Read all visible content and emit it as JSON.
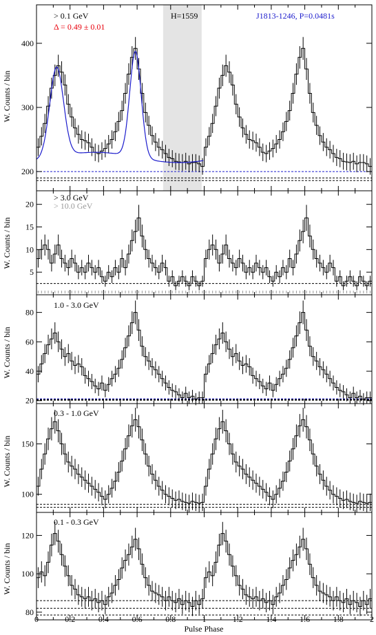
{
  "chart_data": [
    {
      "type": "line",
      "energy_label": "> 0.1 GeV",
      "delta_label": "Δ = 0.49 ± 0.01",
      "h_label": "H=1559",
      "source_label": "J1813-1246, P=0.0481s",
      "ylabel": "W. Counts / bin",
      "xlim": [
        0,
        2
      ],
      "ylim": [
        170,
        460
      ],
      "yticks": [
        200,
        300,
        400
      ],
      "shaded_phase": [
        0.755,
        0.985
      ],
      "baselines": [
        200,
        190,
        186
      ],
      "x": [
        0.0,
        0.02,
        0.04,
        0.06,
        0.08,
        0.1,
        0.12,
        0.14,
        0.16,
        0.18,
        0.2,
        0.22,
        0.24,
        0.26,
        0.28,
        0.3,
        0.32,
        0.34,
        0.36,
        0.38,
        0.4,
        0.42,
        0.44,
        0.46,
        0.48,
        0.5,
        0.52,
        0.54,
        0.56,
        0.58,
        0.6,
        0.62,
        0.64,
        0.66,
        0.68,
        0.7,
        0.72,
        0.74,
        0.76,
        0.78,
        0.8,
        0.82,
        0.84,
        0.86,
        0.88,
        0.9,
        0.92,
        0.94,
        0.96,
        0.98
      ],
      "series": [
        {
          "values": [
            238,
            255,
            275,
            302,
            330,
            350,
            365,
            355,
            335,
            305,
            285,
            268,
            258,
            250,
            248,
            245,
            238,
            230,
            228,
            232,
            236,
            243,
            250,
            262,
            278,
            295,
            322,
            352,
            378,
            392,
            360,
            322,
            292,
            272,
            256,
            246,
            238,
            234,
            228,
            222,
            220,
            216,
            215,
            214,
            216,
            212,
            214,
            214,
            212,
            208
          ]
        }
      ]
    },
    {
      "type": "line",
      "energy_label": "> 3.0 GeV",
      "energy_label2": "> 10.0 GeV",
      "ylabel": "W. Counts / bin",
      "xlim": [
        0,
        2
      ],
      "ylim": [
        0,
        23
      ],
      "yticks": [
        5,
        10,
        15,
        20
      ],
      "baselines": [
        2.5
      ],
      "x": [
        0.0,
        0.02,
        0.04,
        0.06,
        0.08,
        0.1,
        0.12,
        0.14,
        0.16,
        0.18,
        0.2,
        0.22,
        0.24,
        0.26,
        0.28,
        0.3,
        0.32,
        0.34,
        0.36,
        0.38,
        0.4,
        0.42,
        0.44,
        0.46,
        0.48,
        0.5,
        0.52,
        0.54,
        0.56,
        0.58,
        0.6,
        0.62,
        0.64,
        0.66,
        0.68,
        0.7,
        0.72,
        0.74,
        0.76,
        0.78,
        0.8,
        0.82,
        0.84,
        0.86,
        0.88,
        0.9,
        0.92,
        0.94,
        0.96,
        0.98
      ],
      "series": [
        {
          "values": [
            8,
            10,
            11,
            10,
            7,
            9,
            11,
            8,
            7,
            6,
            8,
            7,
            5,
            6,
            5,
            7,
            6,
            5,
            6,
            4,
            3,
            5,
            4,
            6,
            5,
            8,
            6,
            9,
            12,
            14,
            17,
            13,
            10,
            8,
            7,
            6,
            5,
            7,
            6,
            3,
            4,
            2,
            3,
            4,
            3,
            2,
            4,
            3,
            2,
            3
          ]
        }
      ]
    },
    {
      "type": "line",
      "energy_label": "1.0 - 3.0 GeV",
      "ylabel": "W. Counts / bin",
      "xlim": [
        0,
        2
      ],
      "ylim": [
        18,
        92
      ],
      "yticks": [
        20,
        40,
        60,
        80
      ],
      "baselines": [
        21,
        20.5
      ],
      "x": [
        0.0,
        0.02,
        0.04,
        0.06,
        0.08,
        0.1,
        0.12,
        0.14,
        0.16,
        0.18,
        0.2,
        0.22,
        0.24,
        0.26,
        0.28,
        0.3,
        0.32,
        0.34,
        0.36,
        0.38,
        0.4,
        0.42,
        0.44,
        0.46,
        0.48,
        0.5,
        0.52,
        0.54,
        0.56,
        0.58,
        0.6,
        0.62,
        0.64,
        0.66,
        0.68,
        0.7,
        0.72,
        0.74,
        0.76,
        0.78,
        0.8,
        0.82,
        0.84,
        0.86,
        0.88,
        0.9,
        0.92,
        0.94,
        0.96,
        0.98
      ],
      "series": [
        {
          "values": [
            38,
            45,
            52,
            58,
            62,
            66,
            60,
            55,
            50,
            52,
            47,
            44,
            45,
            43,
            37,
            35,
            33,
            30,
            28,
            32,
            27,
            31,
            35,
            38,
            42,
            48,
            56,
            64,
            73,
            80,
            68,
            57,
            50,
            47,
            43,
            41,
            38,
            35,
            32,
            29,
            27,
            26,
            24,
            22,
            25,
            22,
            23,
            21,
            22,
            22
          ]
        }
      ]
    },
    {
      "type": "line",
      "energy_label": "0.3 - 1.0 GeV",
      "ylabel": "W. Counts / bin",
      "xlim": [
        0,
        2
      ],
      "ylim": [
        82,
        190
      ],
      "yticks": [
        100,
        150
      ],
      "baselines": [
        90,
        87
      ],
      "x": [
        0.0,
        0.02,
        0.04,
        0.06,
        0.08,
        0.1,
        0.12,
        0.14,
        0.16,
        0.18,
        0.2,
        0.22,
        0.24,
        0.26,
        0.28,
        0.3,
        0.32,
        0.34,
        0.36,
        0.38,
        0.4,
        0.42,
        0.44,
        0.46,
        0.48,
        0.5,
        0.52,
        0.54,
        0.56,
        0.58,
        0.6,
        0.62,
        0.64,
        0.66,
        0.68,
        0.7,
        0.72,
        0.74,
        0.76,
        0.78,
        0.8,
        0.82,
        0.84,
        0.86,
        0.88,
        0.9,
        0.92,
        0.94,
        0.96,
        0.98
      ],
      "series": [
        {
          "values": [
            108,
            125,
            140,
            155,
            165,
            172,
            163,
            150,
            140,
            132,
            128,
            125,
            120,
            117,
            114,
            111,
            108,
            105,
            102,
            98,
            95,
            100,
            106,
            113,
            122,
            133,
            145,
            158,
            168,
            174,
            167,
            154,
            140,
            128,
            120,
            114,
            108,
            104,
            100,
            98,
            96,
            94,
            95,
            93,
            92,
            91,
            93,
            92,
            91,
            92
          ]
        }
      ]
    },
    {
      "type": "line",
      "energy_label": "0.1 - 0.3 GeV",
      "ylabel": "W. Counts / bin",
      "xlabel": "Pulse Phase",
      "xlim": [
        0,
        2
      ],
      "xticks": [
        "0",
        "0.2",
        "0.4",
        "0.6",
        "0.8",
        "1",
        "1.2",
        "1.4",
        "1.6",
        "1.8",
        "2"
      ],
      "ylim": [
        76,
        132
      ],
      "yticks": [
        80,
        100,
        120
      ],
      "baselines": [
        86,
        82,
        78.5
      ],
      "x": [
        0.0,
        0.02,
        0.04,
        0.06,
        0.08,
        0.1,
        0.12,
        0.14,
        0.16,
        0.18,
        0.2,
        0.22,
        0.24,
        0.26,
        0.28,
        0.3,
        0.32,
        0.34,
        0.36,
        0.38,
        0.4,
        0.42,
        0.44,
        0.46,
        0.48,
        0.5,
        0.52,
        0.54,
        0.56,
        0.58,
        0.6,
        0.62,
        0.64,
        0.66,
        0.68,
        0.7,
        0.72,
        0.74,
        0.76,
        0.78,
        0.8,
        0.82,
        0.84,
        0.86,
        0.88,
        0.9,
        0.92,
        0.94,
        0.96,
        0.98
      ],
      "series": [
        {
          "values": [
            98,
            101,
            99,
            106,
            115,
            121,
            117,
            110,
            104,
            99,
            94,
            92,
            89,
            88,
            87,
            88,
            86,
            87,
            85,
            86,
            84,
            88,
            90,
            94,
            97,
            103,
            107,
            110,
            114,
            118,
            113,
            105,
            98,
            94,
            91,
            90,
            89,
            88,
            86,
            88,
            86,
            85,
            87,
            84,
            86,
            85,
            83,
            86,
            84,
            87
          ]
        }
      ]
    }
  ]
}
